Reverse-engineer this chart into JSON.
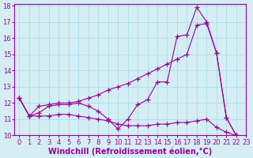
{
  "x": [
    0,
    1,
    2,
    3,
    4,
    5,
    6,
    7,
    8,
    9,
    10,
    11,
    12,
    13,
    14,
    15,
    16,
    17,
    18,
    19,
    20,
    21,
    22
  ],
  "line1": [
    12.3,
    11.2,
    11.4,
    11.8,
    11.9,
    11.9,
    12.0,
    11.8,
    11.5,
    11.0,
    10.4,
    11.0,
    11.9,
    12.2,
    13.3,
    13.3,
    16.1,
    16.2,
    17.9,
    17.0,
    15.1,
    11.1,
    10.0
  ],
  "line2": [
    12.3,
    11.2,
    11.8,
    11.9,
    12.0,
    12.0,
    12.1,
    12.3,
    12.5,
    12.8,
    13.0,
    13.2,
    13.5,
    13.8,
    14.1,
    14.4,
    14.7,
    15.0,
    16.8,
    16.9,
    15.1,
    11.1,
    10.0
  ],
  "line3": [
    12.3,
    11.2,
    11.2,
    11.2,
    11.3,
    11.3,
    11.2,
    11.1,
    11.0,
    10.9,
    10.7,
    10.6,
    10.6,
    10.6,
    10.7,
    10.7,
    10.8,
    10.8,
    10.9,
    11.0,
    10.5,
    10.2,
    10.0
  ],
  "line_color": "#990099",
  "bg_color": "#d4eef4",
  "grid_color": "#aaddee",
  "ylim": [
    10,
    18
  ],
  "yticks": [
    10,
    11,
    12,
    13,
    14,
    15,
    16,
    17,
    18
  ],
  "xlabel": "Windchill (Refroidissement éolien,°C)",
  "xlabel_fontsize": 7,
  "tick_fontsize": 6,
  "marker": "+",
  "markersize": 4,
  "linewidth": 0.8
}
